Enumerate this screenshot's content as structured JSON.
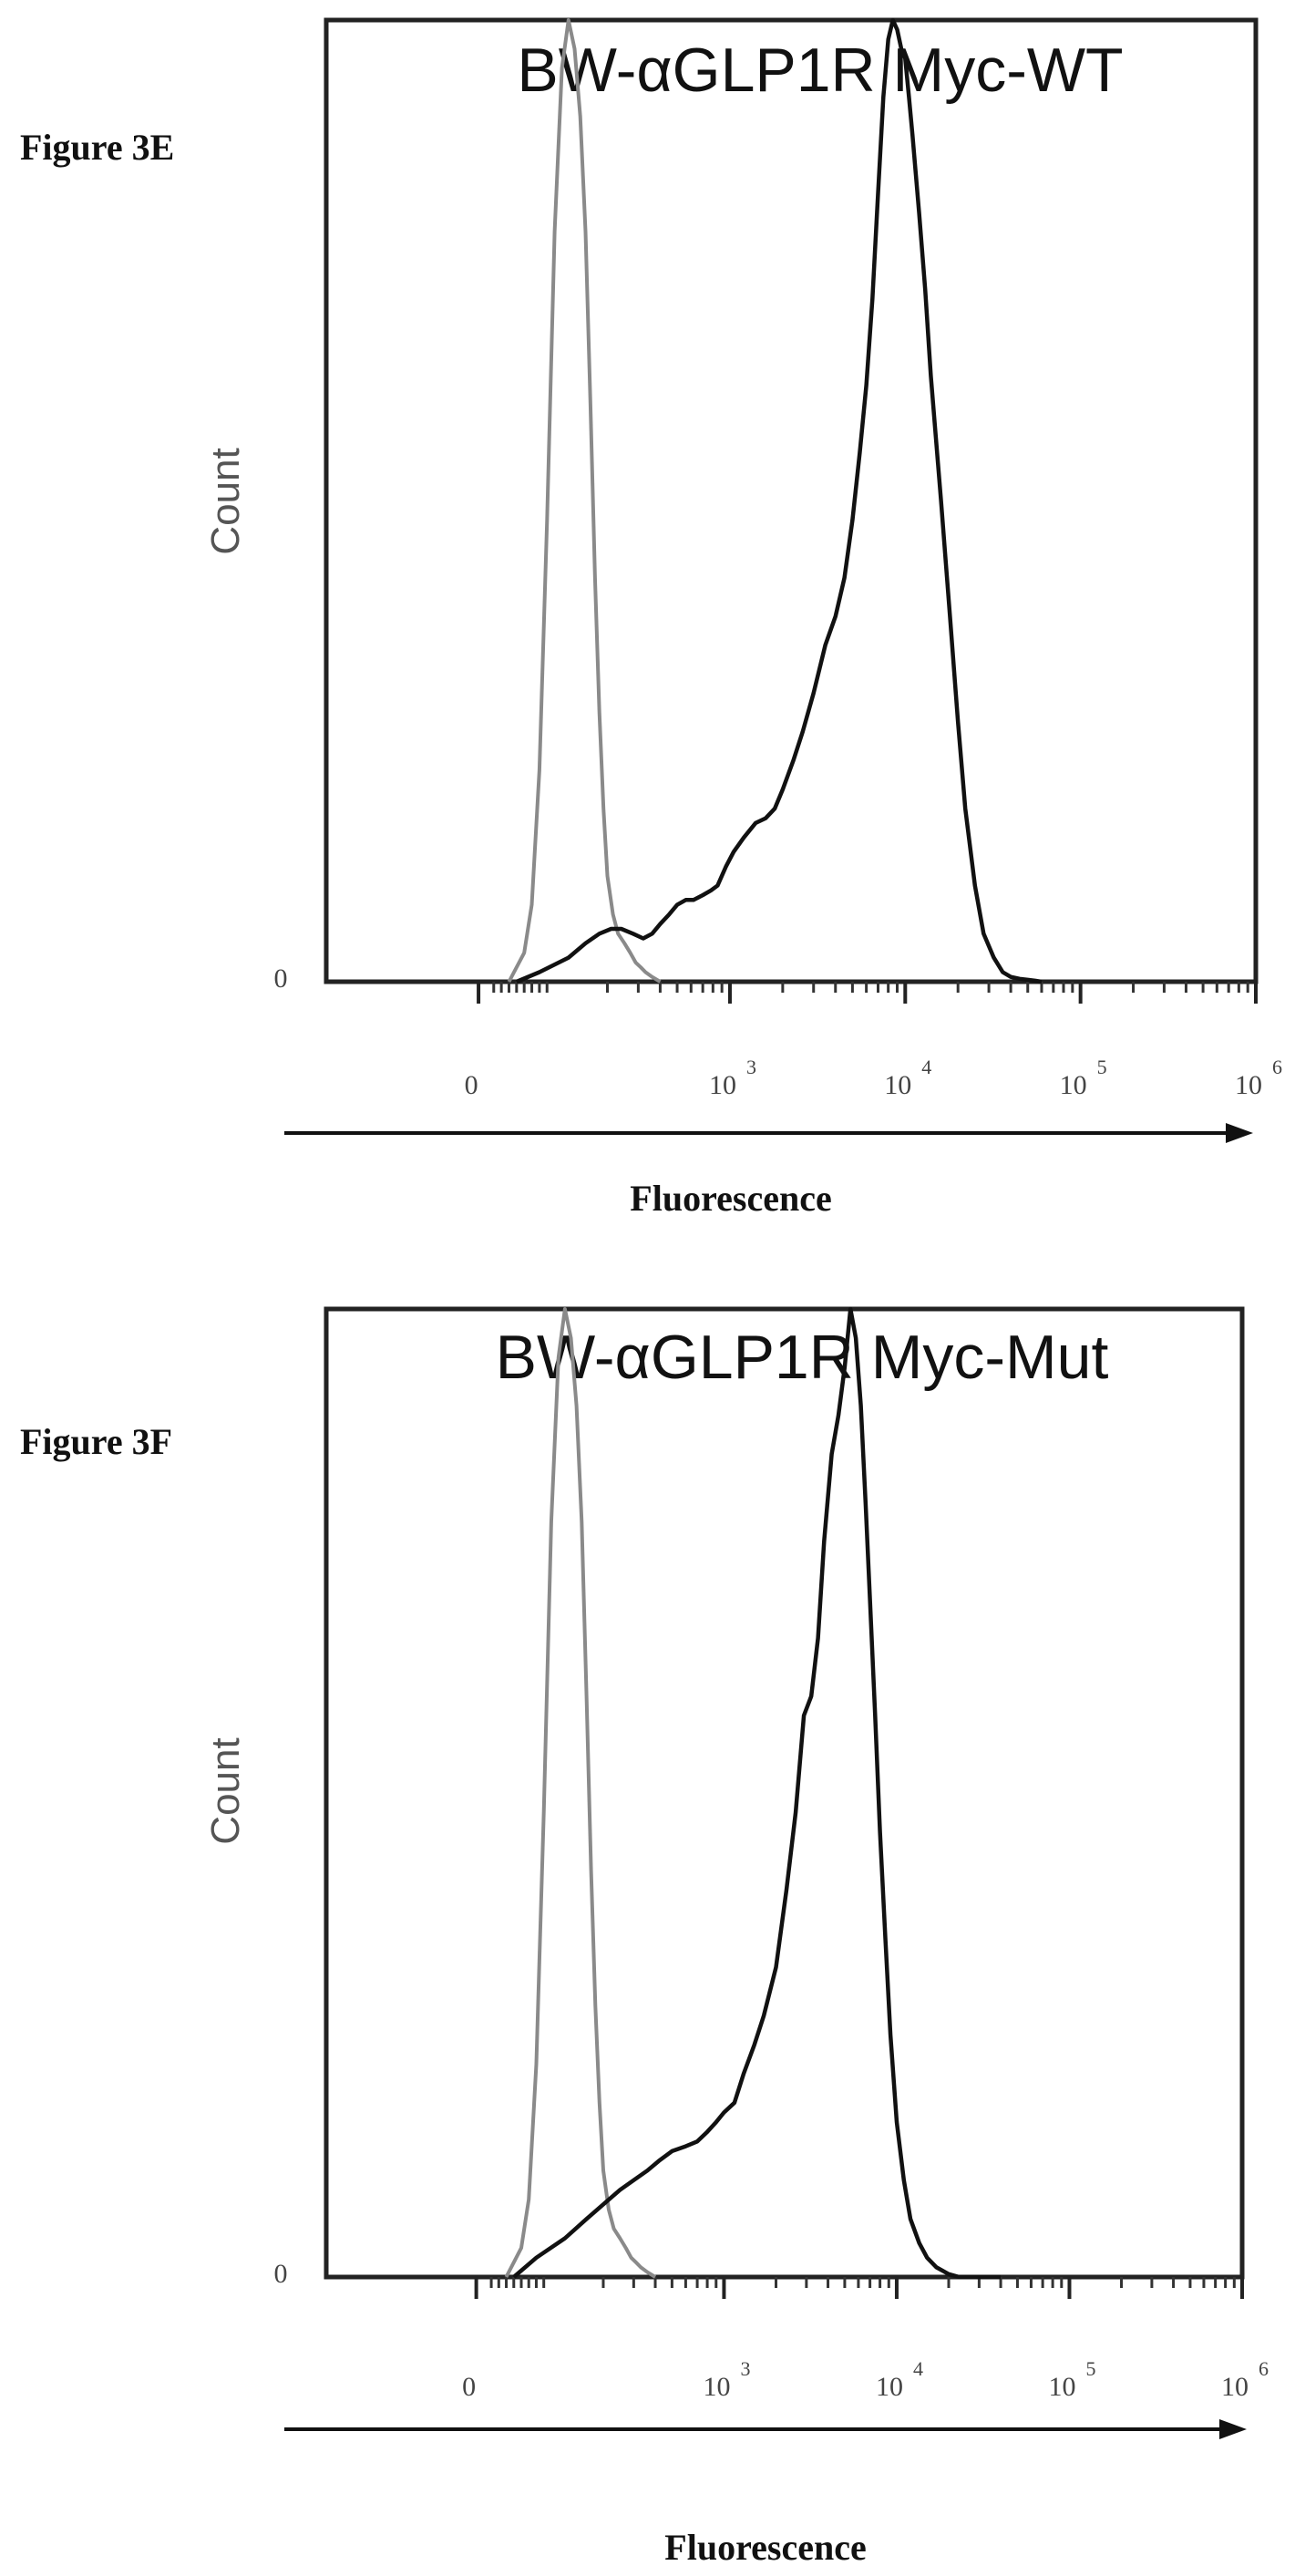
{
  "chart_data": [
    {
      "type": "line",
      "figure_label": "Figure 3E",
      "title": "BW-αGLP1R Myc-WT",
      "xlabel": "Fluorescence",
      "ylabel": "Count",
      "xscale": "biexponential",
      "x_ticks": [
        {
          "value": 0,
          "label": "0",
          "sup": ""
        },
        {
          "value": 1000,
          "label": "10",
          "sup": "3"
        },
        {
          "value": 10000,
          "label": "10",
          "sup": "4"
        },
        {
          "value": 100000,
          "label": "10",
          "sup": "5"
        },
        {
          "value": 1000000,
          "label": "10",
          "sup": "6"
        }
      ],
      "y_ticks": [
        {
          "value": 0,
          "label": "0"
        }
      ],
      "xlim": [
        -200,
        1000000
      ],
      "ylim": [
        0,
        100
      ],
      "grid": false,
      "legend": "none",
      "series": [
        {
          "color": "#8a8a8a",
          "x": [
            40,
            60,
            70,
            80,
            90,
            100,
            110,
            120,
            130,
            140,
            150,
            160,
            170,
            180,
            190,
            200,
            215,
            230,
            250,
            270,
            290,
            310,
            330,
            360,
            400
          ],
          "y": [
            0,
            3,
            8,
            22,
            48,
            78,
            95,
            100,
            97,
            90,
            78,
            60,
            42,
            28,
            18,
            11,
            7,
            5,
            4,
            3,
            2,
            1.5,
            1,
            0.5,
            0
          ]
        },
        {
          "color": "#111111",
          "x": [
            50,
            80,
            120,
            150,
            180,
            210,
            240,
            280,
            320,
            360,
            400,
            450,
            500,
            560,
            620,
            700,
            780,
            850,
            950,
            1050,
            1200,
            1400,
            1600,
            1800,
            2000,
            2300,
            2600,
            3000,
            3500,
            4000,
            4500,
            5000,
            5500,
            6000,
            6500,
            7000,
            7500,
            8000,
            8500,
            9000,
            9500,
            10000,
            10500,
            11000,
            12000,
            13000,
            14000,
            16000,
            18000,
            20000,
            22000,
            25000,
            28000,
            32000,
            36000,
            40000,
            45000,
            50000,
            55000,
            60000
          ],
          "y": [
            0,
            1,
            2.5,
            4,
            5,
            5.5,
            5.5,
            5,
            4.5,
            5,
            6,
            7,
            8,
            8.5,
            8.5,
            9,
            9.5,
            10,
            12,
            13.5,
            15,
            16.5,
            17,
            18,
            20,
            23,
            26,
            30,
            35,
            38,
            42,
            48,
            55,
            62,
            71,
            82,
            92,
            98,
            100,
            99,
            97,
            96,
            92,
            88,
            80,
            72,
            63,
            50,
            38,
            27,
            18,
            10,
            5,
            2.5,
            1,
            0.5,
            0.3,
            0.2,
            0.1,
            0
          ]
        }
      ]
    },
    {
      "type": "line",
      "figure_label": "Figure 3F",
      "title": "BW-αGLP1R Myc-Mut",
      "xlabel": "Fluorescence",
      "ylabel": "Count",
      "xscale": "biexponential",
      "x_ticks": [
        {
          "value": 0,
          "label": "0",
          "sup": ""
        },
        {
          "value": 1000,
          "label": "10",
          "sup": "3"
        },
        {
          "value": 10000,
          "label": "10",
          "sup": "4"
        },
        {
          "value": 100000,
          "label": "10",
          "sup": "5"
        },
        {
          "value": 1000000,
          "label": "10",
          "sup": "6"
        }
      ],
      "y_ticks": [
        {
          "value": 0,
          "label": "0"
        }
      ],
      "xlim": [
        -200,
        1000000
      ],
      "ylim": [
        0,
        100
      ],
      "grid": false,
      "legend": "none",
      "series": [
        {
          "color": "#8a8a8a",
          "x": [
            40,
            60,
            70,
            80,
            90,
            100,
            110,
            120,
            130,
            140,
            150,
            160,
            170,
            180,
            190,
            200,
            215,
            230,
            250,
            270,
            290,
            310,
            330,
            360,
            400
          ],
          "y": [
            0,
            3,
            8,
            22,
            48,
            78,
            95,
            100,
            97,
            90,
            78,
            60,
            42,
            28,
            18,
            11,
            7,
            5,
            4,
            3,
            2,
            1.5,
            1,
            0.5,
            0
          ]
        },
        {
          "color": "#111111",
          "x": [
            50,
            80,
            120,
            160,
            200,
            250,
            300,
            360,
            420,
            500,
            600,
            700,
            800,
            900,
            1000,
            1150,
            1300,
            1500,
            1700,
            2000,
            2300,
            2600,
            2900,
            3200,
            3500,
            3800,
            4200,
            4600,
            5000,
            5400,
            5800,
            6200,
            6600,
            7000,
            7500,
            8000,
            8600,
            9200,
            10000,
            11000,
            12000,
            13500,
            15000,
            17000,
            20000,
            23000,
            26000,
            30000,
            35000,
            40000
          ],
          "y": [
            0,
            2,
            4,
            6,
            7.5,
            9,
            10,
            11,
            12,
            13,
            13.5,
            14,
            15,
            16,
            17,
            18,
            21,
            24,
            27,
            32,
            40,
            48,
            58,
            60,
            66,
            76,
            85,
            89,
            94,
            100,
            97,
            90,
            80,
            70,
            58,
            46,
            35,
            25,
            16,
            10,
            6,
            3.5,
            2,
            1,
            0.3,
            0,
            0,
            0,
            0,
            0
          ]
        }
      ]
    }
  ]
}
